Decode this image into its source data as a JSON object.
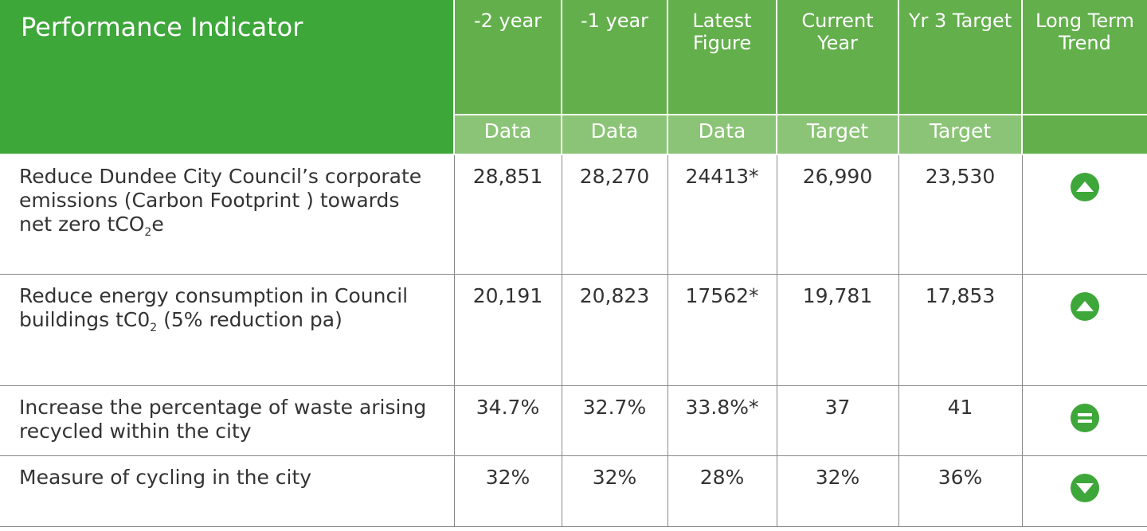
{
  "table": {
    "header": [
      "Performance Indicator",
      "-2 year",
      "-1 year",
      "Latest Figure",
      "Current Year",
      "Yr 3 Target",
      "Long Term Trend"
    ],
    "subheader": [
      "Data",
      "Data",
      "Data",
      "Target",
      "Target"
    ],
    "rows": [
      {
        "indicator": {
          "text": "Reduce Dundee City Council’s corporate emissions (Carbon Footprint ) towards net zero tCO",
          "sub": "2",
          "after": "e"
        },
        "cells": [
          "28,851",
          "28,270",
          "24413*",
          "26,990",
          "23,530"
        ],
        "trend": "up"
      },
      {
        "indicator": {
          "text": "Reduce energy consumption in Council buildings tC0",
          "sub": "2",
          "after": " (5% reduction pa)"
        },
        "cells": [
          "20,191",
          "20,823",
          "17562*",
          "19,781",
          "17,853"
        ],
        "trend": "up"
      },
      {
        "indicator": {
          "text": "Increase the percentage of waste arising recycled within the city"
        },
        "cells": [
          "34.7%",
          "32.7%",
          "33.8%*",
          "37",
          "41"
        ],
        "trend": "same"
      },
      {
        "indicator": {
          "text": "Measure of cycling in the city"
        },
        "cells": [
          "32%",
          "32%",
          "28%",
          "32%",
          "36%"
        ],
        "trend": "down"
      }
    ]
  }
}
